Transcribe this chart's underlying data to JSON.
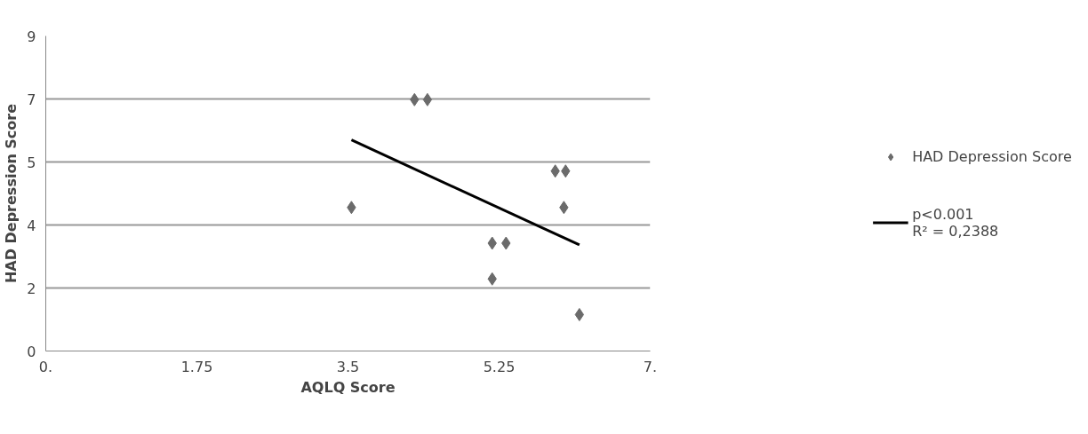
{
  "chart_data": {
    "type": "scatter",
    "xlabel": "AQLQ Score",
    "ylabel": "HAD Depression Score",
    "xlim": [
      0,
      7
    ],
    "ylim": [
      0,
      9
    ],
    "xticks": [
      {
        "value": 0,
        "label": "0."
      },
      1.75,
      3.5,
      5.25,
      {
        "value": 7,
        "label": "7."
      }
    ],
    "yticks": [
      0,
      {
        "value": 1.8,
        "label": "2"
      },
      {
        "value": 3.6,
        "label": "4"
      },
      {
        "value": 5.4,
        "label": "5"
      },
      {
        "value": 7.2,
        "label": "7"
      },
      9
    ],
    "grid": "y",
    "legend": "right",
    "series": [
      {
        "name": "HAD Depression Score",
        "color": "#6b6b6b",
        "marker": "diamond",
        "x": [
          3.54,
          4.27,
          4.42,
          5.17,
          5.33,
          5.17,
          5.9,
          6.02,
          6.0,
          6.18
        ],
        "values": [
          4.1,
          7.18,
          7.18,
          3.08,
          3.08,
          2.06,
          5.14,
          5.14,
          4.1,
          1.04
        ]
      },
      {
        "name": "p<0.001",
        "color": "#000000",
        "type": "line",
        "marker": "none",
        "x": [
          3.54,
          6.18
        ],
        "values": [
          6.03,
          3.03
        ]
      }
    ],
    "annotations": [
      "R² = 0,2388"
    ]
  }
}
